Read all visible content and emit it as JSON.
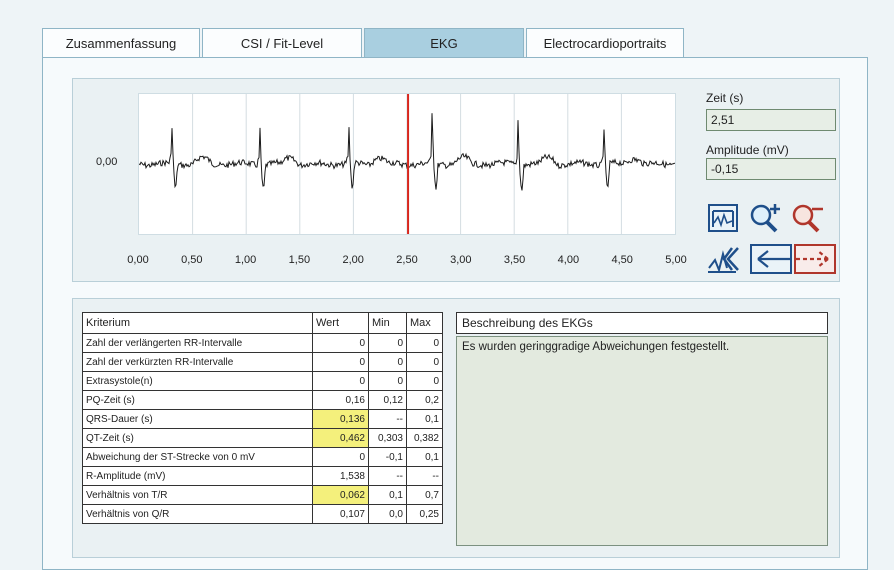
{
  "tabs": [
    {
      "label": "Zusammenfassung"
    },
    {
      "label": "CSI / Fit-Level"
    },
    {
      "label": "EKG"
    },
    {
      "label": "Electrocardioportraits"
    }
  ],
  "ecg": {
    "y_label": "0,00",
    "x_ticks": [
      "0,00",
      "0,50",
      "1,00",
      "1,50",
      "2,00",
      "2,50",
      "3,00",
      "3,50",
      "4,00",
      "4,50",
      "5,00"
    ],
    "cursor_time_s": 2.51,
    "cursor_color": "#d9261c",
    "trace_color": "#1a1a1a"
  },
  "readout": {
    "time_label": "Zeit (s)",
    "time_value": "2,51",
    "amp_label": "Amplitude (mV)",
    "amp_value": "-0,15"
  },
  "tools": [
    {
      "name": "fit-view-icon"
    },
    {
      "name": "zoom-in-icon"
    },
    {
      "name": "zoom-out-icon"
    },
    {
      "name": "reset-view-icon"
    },
    {
      "name": "pan-left-right-icon"
    }
  ],
  "criteria": {
    "headers": [
      "Kriterium",
      "Wert",
      "Min",
      "Max"
    ],
    "rows": [
      {
        "label": "Zahl der verlängerten RR-Intervalle",
        "wert": "0",
        "min": "0",
        "max": "0",
        "hl": false
      },
      {
        "label": "Zahl der verkürzten RR-Intervalle",
        "wert": "0",
        "min": "0",
        "max": "0",
        "hl": false
      },
      {
        "label": "Extrasystole(n)",
        "wert": "0",
        "min": "0",
        "max": "0",
        "hl": false
      },
      {
        "label": "PQ-Zeit (s)",
        "wert": "0,16",
        "min": "0,12",
        "max": "0,2",
        "hl": false
      },
      {
        "label": "QRS-Dauer (s)",
        "wert": "0,136",
        "min": "--",
        "max": "0,1",
        "hl": true
      },
      {
        "label": "QT-Zeit (s)",
        "wert": "0,462",
        "min": "0,303",
        "max": "0,382",
        "hl": true
      },
      {
        "label": "Abweichung der ST-Strecke von 0 mV",
        "wert": "0",
        "min": "-0,1",
        "max": "0,1",
        "hl": false
      },
      {
        "label": "R-Amplitude (mV)",
        "wert": "1,538",
        "min": "--",
        "max": "--",
        "hl": false
      },
      {
        "label": "Verhältnis von T/R",
        "wert": "0,062",
        "min": "0,1",
        "max": "0,7",
        "hl": true
      },
      {
        "label": "Verhältnis von Q/R",
        "wert": "0,107",
        "min": "0,0",
        "max": "0,25",
        "hl": false
      }
    ]
  },
  "description": {
    "title": "Beschreibung des EKGs",
    "text": "Es wurden geringgradige Abweichungen festgestellt."
  }
}
